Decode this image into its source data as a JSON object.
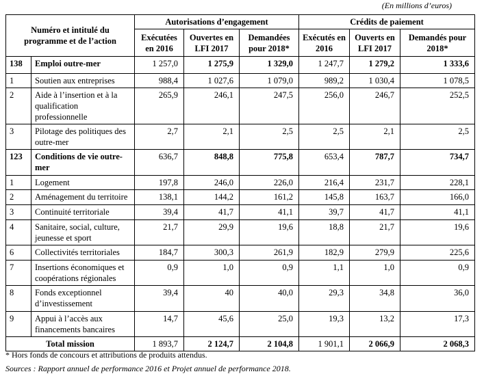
{
  "unit_note": "(En millions d’euros)",
  "header": {
    "row_label": "Numéro et intitulé du programme et de l’action",
    "group_ae": "Autorisations d’engagement",
    "group_cp": "Crédits de paiement",
    "columns": [
      "Exécutées en 2016",
      "Ouvertes en LFI 2017",
      "Demandées pour 2018*",
      "Exécutés en 2016",
      "Ouverts en LFI 2017",
      "Demandés pour 2018*"
    ]
  },
  "rows": [
    {
      "num": "138",
      "label": "Emploi outre-mer",
      "program": true,
      "values": [
        "1 257,0",
        "1 275,9",
        "1 329,0",
        "1 247,7",
        "1 279,2",
        "1 333,6"
      ]
    },
    {
      "num": "1",
      "label": "Soutien aux entreprises",
      "values": [
        "988,4",
        "1 027,6",
        "1 079,0",
        "989,2",
        "1 030,4",
        "1 078,5"
      ]
    },
    {
      "num": "2",
      "label": "Aide à l’insertion et à la qualification professionnelle",
      "values": [
        "265,9",
        "246,1",
        "247,5",
        "256,0",
        "246,7",
        "252,5"
      ]
    },
    {
      "num": "3",
      "label": "Pilotage des politiques des outre-mer",
      "values": [
        "2,7",
        "2,1",
        "2,5",
        "2,5",
        "2,1",
        "2,5"
      ]
    },
    {
      "num": "123",
      "label": "Conditions de vie outre-mer",
      "program": true,
      "values": [
        "636,7",
        "848,8",
        "775,8",
        "653,4",
        "787,7",
        "734,7"
      ]
    },
    {
      "num": "1",
      "label": "Logement",
      "values": [
        "197,8",
        "246,0",
        "226,0",
        "216,4",
        "231,7",
        "228,1"
      ]
    },
    {
      "num": "2",
      "label": "Aménagement du territoire",
      "values": [
        "138,1",
        "144,2",
        "161,2",
        "145,8",
        "163,7",
        "166,0"
      ]
    },
    {
      "num": "3",
      "label": "Continuité territoriale",
      "values": [
        "39,4",
        "41,7",
        "41,1",
        "39,7",
        "41,7",
        "41,1"
      ]
    },
    {
      "num": "4",
      "label": "Sanitaire, social, culture, jeunesse et sport",
      "values": [
        "21,7",
        "29,9",
        "19,6",
        "18,8",
        "21,7",
        "19,6"
      ]
    },
    {
      "num": "6",
      "label": "Collectivités territoriales",
      "values": [
        "184,7",
        "300,3",
        "261,9",
        "182,9",
        "279,9",
        "225,6"
      ]
    },
    {
      "num": "7",
      "label": "Insertions économiques et coopérations régionales",
      "values": [
        "0,9",
        "1,0",
        "0,9",
        "1,1",
        "1,0",
        "0,9"
      ]
    },
    {
      "num": "8",
      "label": "Fonds exceptionnel d’investissement",
      "values": [
        "39,4",
        "40",
        "40,0",
        "29,3",
        "34,8",
        "36,0"
      ]
    },
    {
      "num": "9",
      "label": "Appui à l’accès aux financements bancaires",
      "values": [
        "14,7",
        "45,6",
        "25,0",
        "19,3",
        "13,2",
        "17,3"
      ]
    }
  ],
  "total": {
    "label": "Total mission",
    "values": [
      "1 893,7",
      "2 124,7",
      "2 104,8",
      "1 901,1",
      "2 066,9",
      "2 068,3"
    ]
  },
  "footnote": "* Hors fonds de concours et attributions de produits attendus.",
  "sources": "Sources : Rapport annuel de performance 2016 et Projet annuel de performance 2018."
}
